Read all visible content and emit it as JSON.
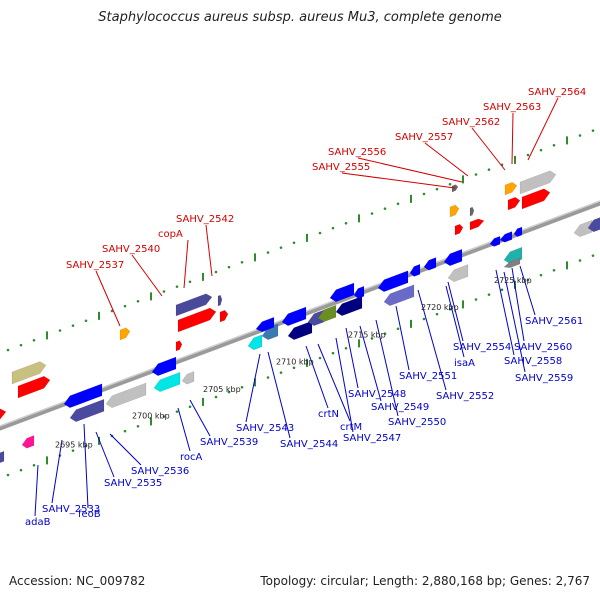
{
  "title": "Staphylococcus aureus subsp. aureus Mu3, complete genome",
  "accession": "Accession: NC_009782",
  "summary": "Topology: circular; Length: 2,880,168 bp; Genes: 2,767",
  "colors": {
    "backbone": "#888888",
    "tick": "#2e8b2e",
    "forward_label": "#d40000",
    "reverse_label": "#0000cc",
    "forward_gene": "#ff0000",
    "reverse_gene": "#0000ff"
  },
  "scale_labels": [
    "2695 kbp",
    "2700 kbp",
    "2705 kbp",
    "2710 kbp",
    "2715 kbp",
    "2720 kbp",
    "2725 kbp"
  ],
  "top_labels": [
    "SAHV_2537",
    "SAHV_2540",
    "copA",
    "SAHV_2542",
    "SAHV_2555",
    "SAHV_2556",
    "SAHV_2557",
    "SAHV_2562",
    "SAHV_2563",
    "SAHV_2564"
  ],
  "bottom_labels": [
    "adaB",
    "SAHV_2533",
    "feoB",
    "SAHV_2535",
    "SAHV_2536",
    "rocA",
    "SAHV_2539",
    "SAHV_2543",
    "SAHV_2544",
    "crtN",
    "crtM",
    "SAHV_2547",
    "SAHV_2548",
    "SAHV_2549",
    "SAHV_2550",
    "SAHV_2551",
    "SAHV_2552",
    "isaA",
    "SAHV_2554",
    "SAHV_2558",
    "SAHV_2559",
    "SAHV_2560",
    "SAHV_2561"
  ]
}
